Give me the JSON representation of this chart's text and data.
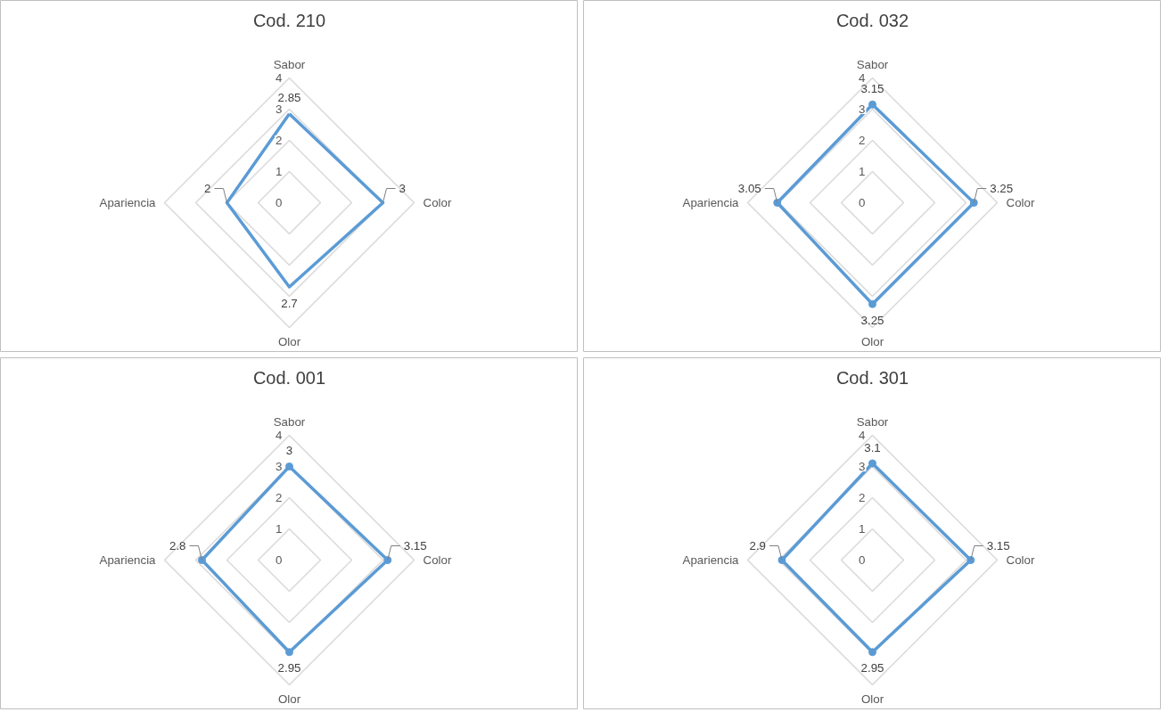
{
  "chart_data": [
    {
      "type": "radar",
      "title": "Cod. 210",
      "categories": [
        "Sabor",
        "Color",
        "Olor",
        "Apariencia"
      ],
      "ylim": [
        0,
        4
      ],
      "yticks": [
        0,
        1,
        2,
        3,
        4
      ],
      "grid": true,
      "data_labels": true,
      "marker": "none",
      "series": [
        {
          "color": "#5b9bd5",
          "values": [
            2.85,
            3,
            2.7,
            2
          ]
        }
      ]
    },
    {
      "type": "radar",
      "title": "Cod. 032",
      "categories": [
        "Sabor",
        "Color",
        "Olor",
        "Apariencia"
      ],
      "ylim": [
        0,
        4
      ],
      "yticks": [
        0,
        1,
        2,
        3,
        4
      ],
      "grid": true,
      "data_labels": true,
      "marker": "circle",
      "series": [
        {
          "color": "#5b9bd5",
          "values": [
            3.15,
            3.25,
            3.25,
            3.05
          ]
        }
      ]
    },
    {
      "type": "radar",
      "title": "Cod. 001",
      "categories": [
        "Sabor",
        "Color",
        "Olor",
        "Apariencia"
      ],
      "ylim": [
        0,
        4
      ],
      "yticks": [
        0,
        1,
        2,
        3,
        4
      ],
      "grid": true,
      "data_labels": true,
      "marker": "circle",
      "series": [
        {
          "color": "#5b9bd5",
          "values": [
            3,
            3.15,
            2.95,
            2.8
          ]
        }
      ]
    },
    {
      "type": "radar",
      "title": "Cod. 301",
      "categories": [
        "Sabor",
        "Color",
        "Olor",
        "Apariencia"
      ],
      "ylim": [
        0,
        4
      ],
      "yticks": [
        0,
        1,
        2,
        3,
        4
      ],
      "grid": true,
      "data_labels": true,
      "marker": "circle",
      "series": [
        {
          "color": "#5b9bd5",
          "values": [
            3.1,
            3.15,
            2.95,
            2.9
          ]
        }
      ]
    }
  ]
}
